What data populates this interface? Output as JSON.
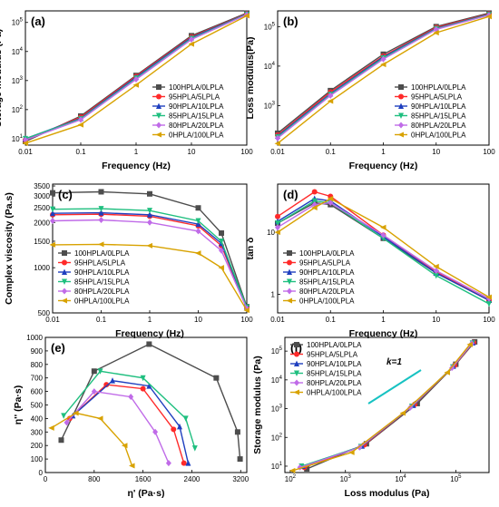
{
  "legend": [
    "100HPLA/0LPLA",
    "95HPLA/5LPLA",
    "90HPLA/10LPLA",
    "85HPLA/15LPLA",
    "80HPLA/20LPLA",
    "0HPLA/100LPLA"
  ],
  "series_colors": [
    "#4d4d4d",
    "#ff2a2a",
    "#1f3fbf",
    "#1fbf7f",
    "#c06be8",
    "#d8a200"
  ],
  "series_markers": [
    "square",
    "circle",
    "triangle-up",
    "triangle-down",
    "diamond",
    "triangle-left"
  ],
  "chart_data": [
    {
      "panel": "(a)",
      "type": "line",
      "xlabel": "Frequency (Hz)",
      "ylabel": "Storage modulus (Pa)",
      "xscale": "log",
      "yscale": "log",
      "xlim": [
        0.01,
        100
      ],
      "ylim": [
        6,
        250000
      ],
      "xticks": [
        "0.01",
        "0.1",
        "1",
        "10",
        "100"
      ],
      "yticks": [
        "10^1",
        "10^2",
        "10^3",
        "10^4",
        "10^5"
      ],
      "legend_position": "lower-right",
      "x": [
        0.01,
        0.1,
        1,
        10,
        100
      ],
      "series": [
        {
          "name": "100HPLA/0LPLA",
          "values": [
            8,
            60,
            1500,
            35000,
            210000
          ]
        },
        {
          "name": "95HPLA/5LPLA",
          "values": [
            9,
            55,
            1400,
            32000,
            200000
          ]
        },
        {
          "name": "90HPLA/10LPLA",
          "values": [
            10,
            50,
            1300,
            30000,
            195000
          ]
        },
        {
          "name": "85HPLA/15LPLA",
          "values": [
            10,
            48,
            1200,
            28000,
            190000
          ]
        },
        {
          "name": "80HPLA/20LPLA",
          "values": [
            9,
            45,
            1100,
            26000,
            185000
          ]
        },
        {
          "name": "0HPLA/100LPLA",
          "values": [
            7,
            30,
            700,
            18000,
            170000
          ]
        }
      ]
    },
    {
      "panel": "(b)",
      "type": "line",
      "xlabel": "Frequency (Hz)",
      "ylabel": "Loss modulus(Pa)",
      "xscale": "log",
      "yscale": "log",
      "xlim": [
        0.01,
        100
      ],
      "ylim": [
        100,
        250000
      ],
      "xticks": [
        "0.01",
        "0.1",
        "1",
        "10",
        "100"
      ],
      "yticks": [
        "10^3",
        "10^4",
        "10^5"
      ],
      "legend_position": "lower-right",
      "x": [
        0.01,
        0.1,
        1,
        10,
        100
      ],
      "series": [
        {
          "name": "100HPLA/0LPLA",
          "values": [
            200,
            2400,
            20000,
            100000,
            220000
          ]
        },
        {
          "name": "95HPLA/5LPLA",
          "values": [
            180,
            2200,
            18000,
            95000,
            210000
          ]
        },
        {
          "name": "90HPLA/10LPLA",
          "values": [
            170,
            2000,
            17000,
            90000,
            205000
          ]
        },
        {
          "name": "85HPLA/15LPLA",
          "values": [
            160,
            1900,
            16000,
            88000,
            200000
          ]
        },
        {
          "name": "80HPLA/20LPLA",
          "values": [
            150,
            1800,
            15000,
            85000,
            195000
          ]
        },
        {
          "name": "0HPLA/100LPLA",
          "values": [
            110,
            1300,
            11000,
            70000,
            180000
          ]
        }
      ]
    },
    {
      "panel": "(c)",
      "type": "line",
      "xlabel": "Frequency (Hz)",
      "ylabel": "Complex viscosity (Pa.s)",
      "xscale": "log",
      "yscale": "log",
      "xlim": [
        0.01,
        100
      ],
      "ylim": [
        500,
        3600
      ],
      "xticks": [
        "0.01",
        "0.1",
        "1",
        "10",
        "100"
      ],
      "yticks": [
        "500",
        "1000",
        "1500",
        "2000",
        "2500",
        "3000",
        "3500"
      ],
      "legend_position": "lower-left",
      "x": [
        0.01,
        0.1,
        1,
        10,
        30,
        100
      ],
      "series": [
        {
          "name": "100HPLA/0LPLA",
          "values": [
            3150,
            3200,
            3100,
            2500,
            1700,
            550
          ]
        },
        {
          "name": "95HPLA/5LPLA",
          "values": [
            2250,
            2270,
            2200,
            1900,
            1400,
            540
          ]
        },
        {
          "name": "90HPLA/10LPLA",
          "values": [
            2300,
            2320,
            2250,
            1950,
            1450,
            540
          ]
        },
        {
          "name": "85HPLA/15LPLA",
          "values": [
            2450,
            2470,
            2400,
            2050,
            1500,
            545
          ]
        },
        {
          "name": "80HPLA/20LPLA",
          "values": [
            2050,
            2080,
            2000,
            1750,
            1300,
            535
          ]
        },
        {
          "name": "0HPLA/100LPLA",
          "values": [
            1420,
            1430,
            1400,
            1250,
            1000,
            520
          ]
        }
      ]
    },
    {
      "panel": "(d)",
      "type": "line",
      "xlabel": "Frequency (Hz)",
      "ylabel": "tan δ",
      "xscale": "log",
      "yscale": "log",
      "xlim": [
        0.01,
        100
      ],
      "ylim": [
        0.5,
        60
      ],
      "xticks": [
        "0.01",
        "0.1",
        "1",
        "10",
        "100"
      ],
      "yticks": [
        "1",
        "10"
      ],
      "legend_position": "lower-left",
      "x": [
        0.01,
        0.05,
        0.1,
        1,
        10,
        100
      ],
      "series": [
        {
          "name": "100HPLA/0LPLA",
          "values": [
            14,
            30,
            28,
            8,
            2.2,
            0.8
          ]
        },
        {
          "name": "95HPLA/5LPLA",
          "values": [
            18,
            45,
            38,
            9,
            2.3,
            0.8
          ]
        },
        {
          "name": "90HPLA/10LPLA",
          "values": [
            15,
            35,
            32,
            8.5,
            2.2,
            0.8
          ]
        },
        {
          "name": "85HPLA/15LPLA",
          "values": [
            14,
            32,
            30,
            8,
            2.0,
            0.7
          ]
        },
        {
          "name": "80HPLA/20LPLA",
          "values": [
            12,
            28,
            30,
            9,
            2.4,
            0.85
          ]
        },
        {
          "name": "0HPLA/100LPLA",
          "values": [
            10,
            25,
            35,
            12,
            2.8,
            0.9
          ]
        }
      ]
    },
    {
      "panel": "(e)",
      "type": "line",
      "xlabel": "η' (Pa·s)",
      "ylabel": "η'' (Pa·s)",
      "xscale": "linear",
      "yscale": "linear",
      "xlim": [
        0,
        3300
      ],
      "ylim": [
        0,
        1000
      ],
      "xticks": [
        "0",
        "800",
        "1600",
        "2400",
        "3200"
      ],
      "yticks": [
        "0",
        "100",
        "200",
        "300",
        "400",
        "500",
        "600",
        "700",
        "800",
        "900",
        "1000"
      ],
      "series": [
        {
          "name": "100HPLA/0LPLA",
          "x": [
            260,
            800,
            1700,
            2800,
            3150,
            3190
          ],
          "y": [
            240,
            750,
            950,
            700,
            300,
            100
          ]
        },
        {
          "name": "95HPLA/5LPLA",
          "x": [
            400,
            1000,
            1600,
            2100,
            2270
          ],
          "y": [
            400,
            650,
            620,
            320,
            70
          ]
        },
        {
          "name": "90HPLA/10LPLA",
          "x": [
            450,
            1100,
            1700,
            2200,
            2340
          ],
          "y": [
            420,
            680,
            640,
            340,
            70
          ]
        },
        {
          "name": "85HPLA/15LPLA",
          "x": [
            300,
            900,
            1600,
            2300,
            2450
          ],
          "y": [
            420,
            750,
            700,
            400,
            180
          ]
        },
        {
          "name": "80HPLA/20LPLA",
          "x": [
            350,
            800,
            1400,
            1800,
            2020
          ],
          "y": [
            370,
            600,
            560,
            300,
            70
          ]
        },
        {
          "name": "0HPLA/100LPLA",
          "x": [
            100,
            500,
            900,
            1300,
            1420
          ],
          "y": [
            330,
            440,
            400,
            200,
            50
          ]
        }
      ]
    },
    {
      "panel": "(f)",
      "type": "line",
      "xlabel": "Loss modulus (Pa)",
      "ylabel": "Storage modulus (Pa)",
      "xscale": "log",
      "yscale": "log",
      "xlim": [
        80,
        400000
      ],
      "ylim": [
        6,
        300000
      ],
      "xticks": [
        "10^2",
        "10^3",
        "10^4",
        "10^5"
      ],
      "yticks": [
        "10^1",
        "10^2",
        "10^3",
        "10^4",
        "10^5"
      ],
      "annotation": "k=1",
      "legend_position": "upper-left",
      "series": [
        {
          "name": "100HPLA/0LPLA",
          "x": [
            200,
            2400,
            20000,
            100000,
            220000
          ],
          "y": [
            8,
            60,
            1500,
            35000,
            210000
          ]
        },
        {
          "name": "95HPLA/5LPLA",
          "x": [
            180,
            2200,
            18000,
            95000,
            210000
          ],
          "y": [
            9,
            55,
            1400,
            32000,
            200000
          ]
        },
        {
          "name": "90HPLA/10LPLA",
          "x": [
            170,
            2000,
            17000,
            90000,
            205000
          ],
          "y": [
            10,
            50,
            1300,
            30000,
            195000
          ]
        },
        {
          "name": "85HPLA/15LPLA",
          "x": [
            160,
            1900,
            16000,
            88000,
            200000
          ],
          "y": [
            10,
            48,
            1200,
            28000,
            190000
          ]
        },
        {
          "name": "80HPLA/20LPLA",
          "x": [
            150,
            1800,
            15000,
            85000,
            195000
          ],
          "y": [
            9,
            45,
            1100,
            26000,
            185000
          ]
        },
        {
          "name": "0HPLA/100LPLA",
          "x": [
            110,
            1300,
            11000,
            70000,
            180000
          ],
          "y": [
            7,
            30,
            700,
            18000,
            170000
          ]
        }
      ]
    }
  ]
}
